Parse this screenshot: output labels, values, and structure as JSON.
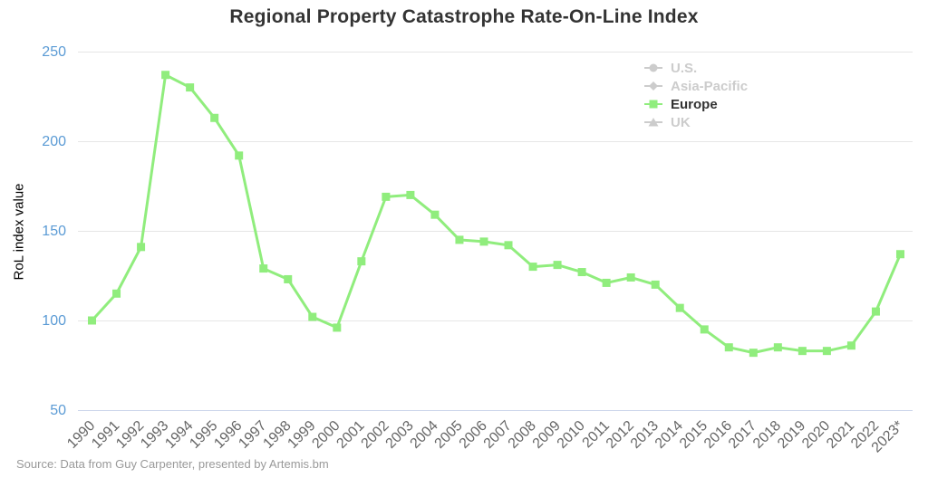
{
  "title": "Regional Property Catastrophe Rate-On-Line Index",
  "source": "Source: Data from Guy Carpenter, presented by Artemis.bm",
  "colors": {
    "series_green": "#90ed7d",
    "axis_blue": "#5b9bd5",
    "grid": "#e6e6e6",
    "axis_line": "#ccd6eb",
    "disabled": "#cccccc",
    "title_color": "#333333",
    "xlabel_gray": "#666666",
    "source_gray": "#999999"
  },
  "legend": [
    {
      "label": "U.S.",
      "marker": "circle-icon",
      "enabled": false
    },
    {
      "label": "Asia-Pacific",
      "marker": "diamond-icon",
      "enabled": false
    },
    {
      "label": "Europe",
      "marker": "square-icon",
      "enabled": true,
      "color": "#90ed7d"
    },
    {
      "label": "UK",
      "marker": "triangle-icon",
      "enabled": false
    }
  ],
  "chart_data": {
    "type": "line",
    "title": "Regional Property Catastrophe Rate-On-Line Index",
    "xlabel": "",
    "ylabel": "RoL index value",
    "ylim": [
      50,
      250
    ],
    "yticks": [
      50,
      100,
      150,
      200,
      250
    ],
    "grid": true,
    "legend_position": "top-right",
    "categories": [
      "1990",
      "1991",
      "1992",
      "1993",
      "1994",
      "1995",
      "1996",
      "1997",
      "1998",
      "1999",
      "2000",
      "2001",
      "2002",
      "2003",
      "2004",
      "2005",
      "2006",
      "2007",
      "2008",
      "2009",
      "2010",
      "2011",
      "2012",
      "2013",
      "2014",
      "2015",
      "2016",
      "2017",
      "2018",
      "2019",
      "2020",
      "2021",
      "2022",
      "2023*"
    ],
    "series": [
      {
        "name": "Europe",
        "color": "#90ed7d",
        "marker": "square",
        "values": [
          100,
          115,
          141,
          237,
          230,
          213,
          192,
          129,
          123,
          102,
          96,
          133,
          169,
          170,
          159,
          145,
          144,
          142,
          130,
          131,
          127,
          121,
          124,
          120,
          107,
          95,
          85,
          82,
          85,
          83,
          83,
          86,
          105,
          137
        ]
      }
    ]
  }
}
